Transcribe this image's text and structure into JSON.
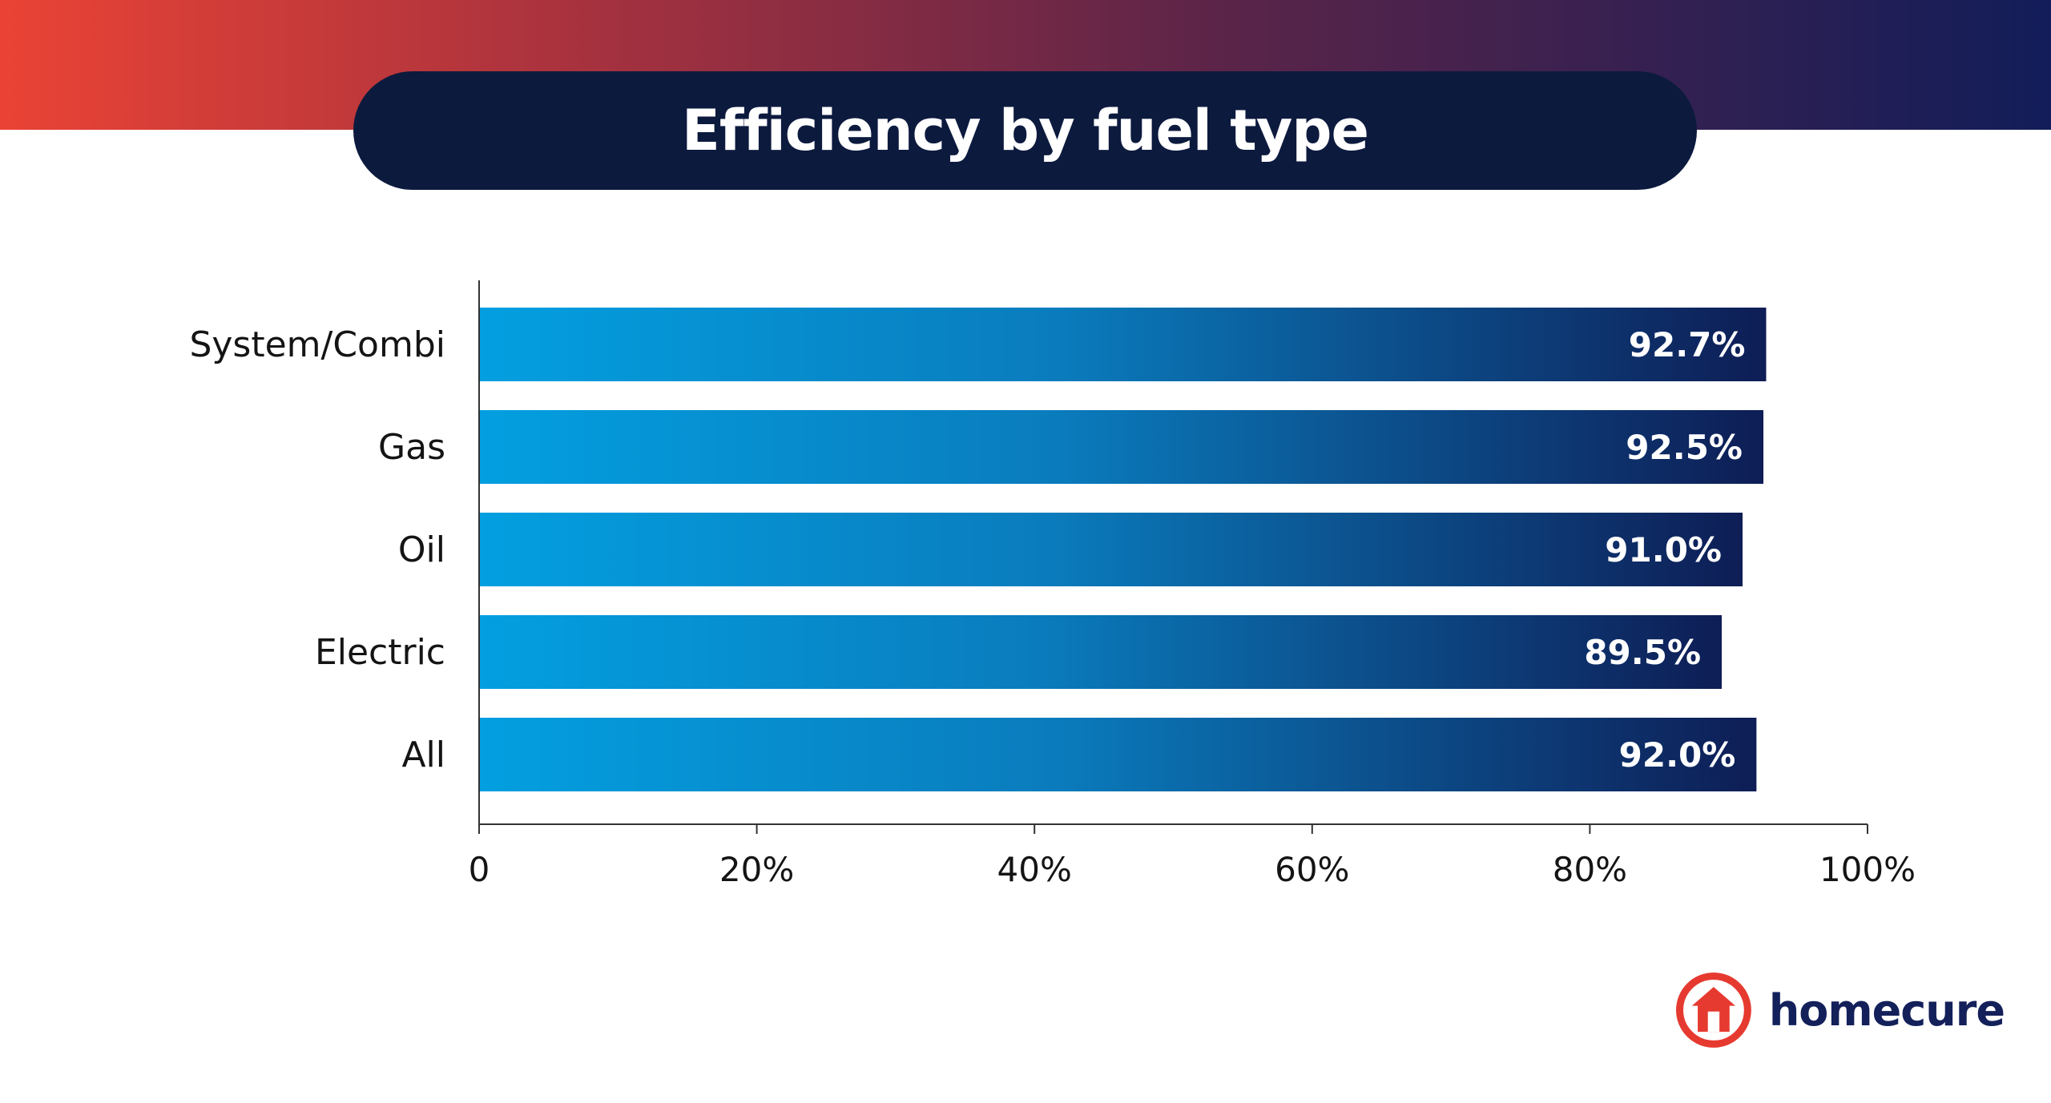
{
  "brand": {
    "name": "homecure",
    "colors": {
      "primary": "#0c1a3e",
      "accent": "#ea4335",
      "navy": "#13205a"
    },
    "icon": "house-logo-icon"
  },
  "chart_data": {
    "type": "bar",
    "orientation": "horizontal",
    "title": "Efficiency by fuel type",
    "categories": [
      "System/Combi",
      "Gas",
      "Oil",
      "Electric",
      "All"
    ],
    "values": [
      92.7,
      92.5,
      91.0,
      89.5,
      92.0
    ],
    "value_labels": [
      "92.7%",
      "92.5%",
      "91.0%",
      "89.5%",
      "92.0%"
    ],
    "xlim": [
      0,
      100
    ],
    "x_ticks": [
      0,
      20,
      40,
      60,
      80,
      100
    ],
    "x_tick_labels": [
      "0",
      "20%",
      "40%",
      "60%",
      "80%",
      "100%"
    ],
    "xlabel": "",
    "ylabel": "",
    "grid": false,
    "bar_gradient": [
      "#039fe0",
      "#0a7cbd",
      "#0e1d55"
    ]
  }
}
